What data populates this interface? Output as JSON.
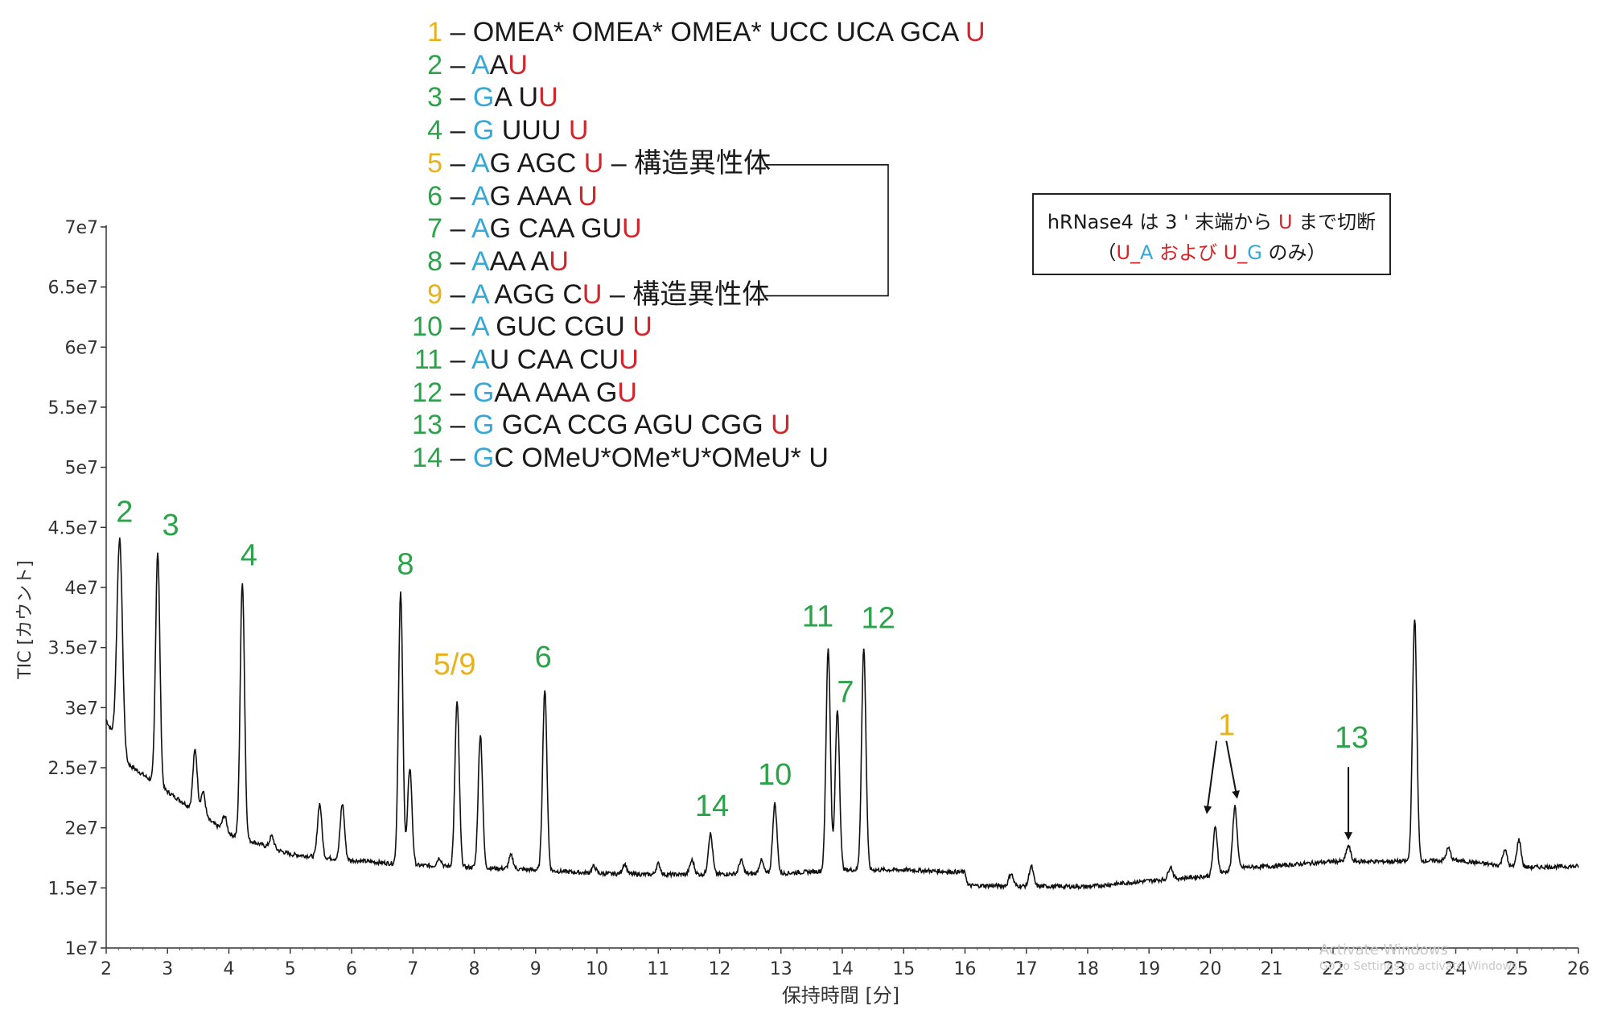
{
  "colors": {
    "green": "#2ca24a",
    "yellow": "#e8b21a",
    "blue": "#35a8d6",
    "red": "#d0262c",
    "line": "#111111"
  },
  "legend": [
    {
      "num": "1",
      "num_color": "yellow",
      "segments": [
        {
          "t": "– OMEA* OMEA* OMEA* UCC UCA GCA ",
          "c": "black"
        },
        {
          "t": "U",
          "c": "red"
        }
      ]
    },
    {
      "num": "2",
      "num_color": "green",
      "segments": [
        {
          "t": "– ",
          "c": "black"
        },
        {
          "t": "A",
          "c": "blue"
        },
        {
          "t": "A",
          "c": "black"
        },
        {
          "t": "U",
          "c": "red"
        }
      ]
    },
    {
      "num": "3",
      "num_color": "green",
      "segments": [
        {
          "t": "– ",
          "c": "black"
        },
        {
          "t": "G",
          "c": "blue"
        },
        {
          "t": "A U",
          "c": "black"
        },
        {
          "t": "U",
          "c": "red"
        }
      ]
    },
    {
      "num": "4",
      "num_color": "green",
      "segments": [
        {
          "t": "– ",
          "c": "black"
        },
        {
          "t": "G",
          "c": "blue"
        },
        {
          "t": " UUU ",
          "c": "black"
        },
        {
          "t": "U",
          "c": "red"
        }
      ]
    },
    {
      "num": "5",
      "num_color": "yellow",
      "segments": [
        {
          "t": "– ",
          "c": "black"
        },
        {
          "t": "A",
          "c": "blue"
        },
        {
          "t": "G AGC ",
          "c": "black"
        },
        {
          "t": "U",
          "c": "red"
        },
        {
          "t": " – 構造異性体",
          "c": "black"
        }
      ]
    },
    {
      "num": "6",
      "num_color": "green",
      "segments": [
        {
          "t": "– ",
          "c": "black"
        },
        {
          "t": "A",
          "c": "blue"
        },
        {
          "t": "G AAA ",
          "c": "black"
        },
        {
          "t": "U",
          "c": "red"
        }
      ]
    },
    {
      "num": "7",
      "num_color": "green",
      "segments": [
        {
          "t": "– ",
          "c": "black"
        },
        {
          "t": "A",
          "c": "blue"
        },
        {
          "t": "G CAA GU",
          "c": "black"
        },
        {
          "t": "U",
          "c": "red"
        }
      ]
    },
    {
      "num": "8",
      "num_color": "green",
      "segments": [
        {
          "t": "– ",
          "c": "black"
        },
        {
          "t": "A",
          "c": "blue"
        },
        {
          "t": "AA A",
          "c": "black"
        },
        {
          "t": "U",
          "c": "red"
        }
      ]
    },
    {
      "num": "9",
      "num_color": "yellow",
      "segments": [
        {
          "t": "– ",
          "c": "black"
        },
        {
          "t": "A",
          "c": "blue"
        },
        {
          "t": " AGG C",
          "c": "black"
        },
        {
          "t": "U",
          "c": "red"
        },
        {
          "t": " – 構造異性体",
          "c": "black"
        }
      ]
    },
    {
      "num": "10",
      "num_color": "green",
      "segments": [
        {
          "t": "– ",
          "c": "black"
        },
        {
          "t": "A",
          "c": "blue"
        },
        {
          "t": " GUC CGU ",
          "c": "black"
        },
        {
          "t": "U",
          "c": "red"
        }
      ]
    },
    {
      "num": "11",
      "num_color": "green",
      "segments": [
        {
          "t": "– ",
          "c": "black"
        },
        {
          "t": "A",
          "c": "blue"
        },
        {
          "t": "U CAA CU",
          "c": "black"
        },
        {
          "t": "U",
          "c": "red"
        }
      ]
    },
    {
      "num": "12",
      "num_color": "green",
      "segments": [
        {
          "t": "– ",
          "c": "black"
        },
        {
          "t": "G",
          "c": "blue"
        },
        {
          "t": "AA AAA G",
          "c": "black"
        },
        {
          "t": "U",
          "c": "red"
        }
      ]
    },
    {
      "num": "13",
      "num_color": "green",
      "segments": [
        {
          "t": "– ",
          "c": "black"
        },
        {
          "t": "G",
          "c": "blue"
        },
        {
          "t": " GCA CCG AGU CGG ",
          "c": "black"
        },
        {
          "t": "U",
          "c": "red"
        }
      ]
    },
    {
      "num": "14",
      "num_color": "green",
      "segments": [
        {
          "t": "– ",
          "c": "black"
        },
        {
          "t": "G",
          "c": "blue"
        },
        {
          "t": "C OMeU*OMe*U*OMeU* U",
          "c": "black"
        }
      ]
    }
  ],
  "note": {
    "line1": [
      {
        "t": "hRNase4 は 3 ' 末端から ",
        "c": "black"
      },
      {
        "t": "U",
        "c": "red"
      },
      {
        "t": " まで切断",
        "c": "black"
      }
    ],
    "line2": [
      {
        "t": "（",
        "c": "black"
      },
      {
        "t": "U_",
        "c": "red"
      },
      {
        "t": "A",
        "c": "blue"
      },
      {
        "t": " および ",
        "c": "red"
      },
      {
        "t": "U_",
        "c": "red"
      },
      {
        "t": "G",
        "c": "blue"
      },
      {
        "t": " のみ）",
        "c": "black"
      }
    ]
  },
  "watermark": {
    "line1": "Activate Windows",
    "line2": "Go to Settings to activate Windows."
  },
  "chart_data": {
    "type": "line",
    "title": "",
    "xlabel": "保持時間 [分]",
    "ylabel": "TIC [カウント]",
    "xlim": [
      2,
      26
    ],
    "ylim": [
      10000000,
      70000000
    ],
    "x_ticks": [
      2,
      3,
      4,
      5,
      6,
      7,
      8,
      9,
      10,
      11,
      12,
      13,
      14,
      15,
      16,
      17,
      18,
      19,
      20,
      21,
      22,
      23,
      24,
      25,
      26
    ],
    "x_tick_labels": [
      "2",
      "3",
      "4",
      "5",
      "6",
      "7",
      "8",
      "9",
      "10",
      "11",
      "12",
      "13",
      "14",
      "15",
      "16",
      "17",
      "18",
      "19",
      "20",
      "21",
      "22",
      "23",
      "24",
      "25",
      "26"
    ],
    "y_ticks": [
      10000000,
      15000000,
      20000000,
      25000000,
      30000000,
      35000000,
      40000000,
      45000000,
      50000000,
      55000000,
      60000000,
      65000000,
      70000000
    ],
    "y_tick_labels": [
      "1e7",
      "1.5e7",
      "2e7",
      "2.5e7",
      "3e7",
      "3.5e7",
      "4e7",
      "4.5e7",
      "5e7",
      "5.5e7",
      "6e7",
      "6.5e7",
      "7e7"
    ],
    "baseline": [
      [
        2,
        29000000
      ],
      [
        2.3,
        25500000
      ],
      [
        3,
        23000000
      ],
      [
        4,
        19500000
      ],
      [
        5,
        17800000
      ],
      [
        6,
        17300000
      ],
      [
        7,
        16900000
      ],
      [
        8,
        16700000
      ],
      [
        9,
        16500000
      ],
      [
        10,
        16200000
      ],
      [
        11,
        16100000
      ],
      [
        13,
        16200000
      ],
      [
        14,
        16500000
      ],
      [
        15,
        16500000
      ],
      [
        16,
        16300000
      ],
      [
        16.05,
        15200000
      ],
      [
        18,
        15100000
      ],
      [
        19,
        15600000
      ],
      [
        20,
        16000000
      ],
      [
        20.5,
        16700000
      ],
      [
        21,
        16800000
      ],
      [
        22,
        17200000
      ],
      [
        23,
        17200000
      ],
      [
        24,
        17300000
      ],
      [
        25,
        16700000
      ],
      [
        26,
        16800000
      ]
    ],
    "peaks": [
      {
        "x": 2.22,
        "y": 44000000,
        "label": "2",
        "color": "green"
      },
      {
        "x": 2.84,
        "y": 43000000,
        "label": "3",
        "color": "green"
      },
      {
        "x": 3.45,
        "y": 26500000
      },
      {
        "x": 3.58,
        "y": 23000000
      },
      {
        "x": 3.93,
        "y": 21000000
      },
      {
        "x": 4.22,
        "y": 40500000,
        "label": "4",
        "color": "green"
      },
      {
        "x": 4.7,
        "y": 19300000
      },
      {
        "x": 5.48,
        "y": 22000000
      },
      {
        "x": 5.85,
        "y": 22000000
      },
      {
        "x": 6.8,
        "y": 39500000,
        "label": "8",
        "color": "green"
      },
      {
        "x": 6.95,
        "y": 25000000
      },
      {
        "x": 7.43,
        "y": 17500000
      },
      {
        "x": 7.72,
        "y": 30500000,
        "label": "5/9",
        "color": "yellow"
      },
      {
        "x": 8.1,
        "y": 27800000
      },
      {
        "x": 8.6,
        "y": 17700000
      },
      {
        "x": 9.15,
        "y": 31500000,
        "label": "6",
        "color": "green"
      },
      {
        "x": 9.95,
        "y": 16800000
      },
      {
        "x": 10.45,
        "y": 17000000
      },
      {
        "x": 11.0,
        "y": 17000000
      },
      {
        "x": 11.55,
        "y": 17300000
      },
      {
        "x": 11.85,
        "y": 19500000,
        "label": "14",
        "color": "green"
      },
      {
        "x": 12.35,
        "y": 17300000
      },
      {
        "x": 12.68,
        "y": 17300000
      },
      {
        "x": 12.9,
        "y": 22000000,
        "label": "10",
        "color": "green"
      },
      {
        "x": 13.77,
        "y": 35000000,
        "label": "11",
        "color": "green"
      },
      {
        "x": 13.92,
        "y": 29800000,
        "label": "7",
        "color": "green"
      },
      {
        "x": 14.35,
        "y": 35000000,
        "label": "12",
        "color": "green"
      },
      {
        "x": 16.75,
        "y": 16200000
      },
      {
        "x": 17.08,
        "y": 16800000
      },
      {
        "x": 19.35,
        "y": 16800000
      },
      {
        "x": 20.08,
        "y": 20000000,
        "label": "1",
        "color": "yellow"
      },
      {
        "x": 20.4,
        "y": 21800000
      },
      {
        "x": 22.25,
        "y": 18500000,
        "label": "13",
        "color": "green"
      },
      {
        "x": 23.33,
        "y": 37500000
      },
      {
        "x": 23.88,
        "y": 18300000
      },
      {
        "x": 24.8,
        "y": 18200000
      },
      {
        "x": 25.03,
        "y": 19000000
      }
    ]
  }
}
